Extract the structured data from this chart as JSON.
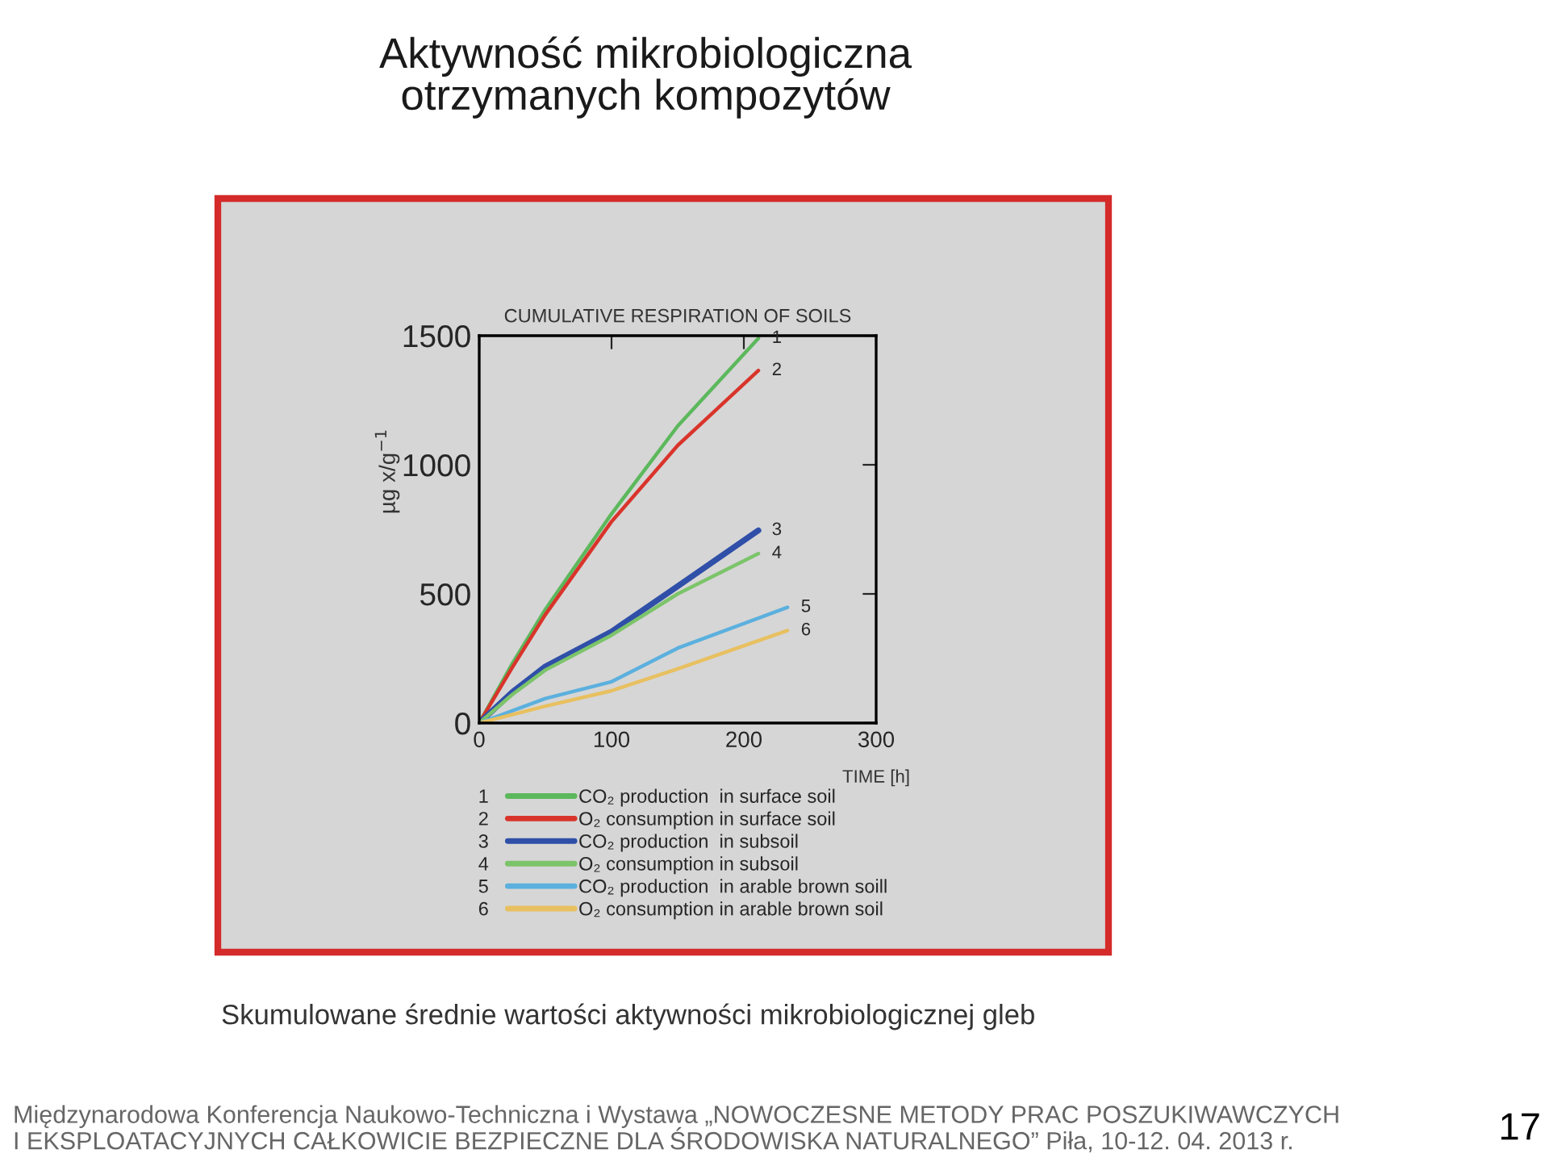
{
  "chart_data": {
    "type": "line",
    "title": "CUMULATIVE RESPIRATION OF SOILS",
    "xlabel": "TIME [h]",
    "ylabel": "µg x/g$^{−1}$",
    "x": [
      0,
      25,
      50,
      100,
      150,
      211
    ],
    "series": [
      {
        "name": "CO₂ production  in surface soil",
        "color": "#5cb85c",
        "values": [
          0,
          230,
          440,
          810,
          1150,
          1490
        ]
      },
      {
        "name": "O₂ consumption in surface soil",
        "color": "#d9342b",
        "values": [
          0,
          215,
          420,
          780,
          1075,
          1365
        ]
      },
      {
        "name": "CO₂ production  in subsoil",
        "color": "#2f4fa8",
        "x": [
          0,
          25,
          50,
          100,
          150,
          211
        ],
        "values": [
          0,
          120,
          219,
          354,
          530,
          746
        ]
      },
      {
        "name": "O₂ consumption in subsoil",
        "color": "#7cc46a",
        "x": [
          0,
          25,
          50,
          100,
          150,
          211
        ],
        "values": [
          0,
          110,
          205,
          340,
          500,
          656
        ]
      },
      {
        "name": "CO₂ production  in arable brown soill",
        "color": "#5bb0de",
        "x": [
          0,
          50,
          100,
          150,
          233
        ],
        "values": [
          0,
          95,
          160,
          290,
          448
        ]
      },
      {
        "name": "O₂ consumption in arable brown soil",
        "color": "#e8c060",
        "x": [
          0,
          50,
          100,
          150,
          233
        ],
        "values": [
          0,
          65,
          125,
          210,
          358
        ]
      }
    ],
    "xlim": [
      0,
      300
    ],
    "xticks": [
      0,
      100,
      200,
      300
    ],
    "ylim": [
      0,
      1500
    ],
    "yticks": [
      0,
      500,
      1000,
      1500
    ],
    "grid": false,
    "legend": "bottom",
    "annotations": [
      "1",
      "2",
      "3",
      "4",
      "5",
      "6",
      "Aktywność mikrobiologiczna\notrzymanych kompozytów",
      "Skumulowane średnie wartości aktywności mikrobiologicznej gleb",
      "Międzynarodowa Konferencja Naukowo-Techniczna i Wystawa „NOWOCZESNE METODY PRAC POSZUKIWAWCZYCH\nI EKSPLOATACYJNYCH CAŁKOWICIE BEZPIECZNE DLA ŚRODOWISKA NATURALNEGO” Piła, 10-12. 04. 2013 r.",
      "17"
    ]
  }
}
